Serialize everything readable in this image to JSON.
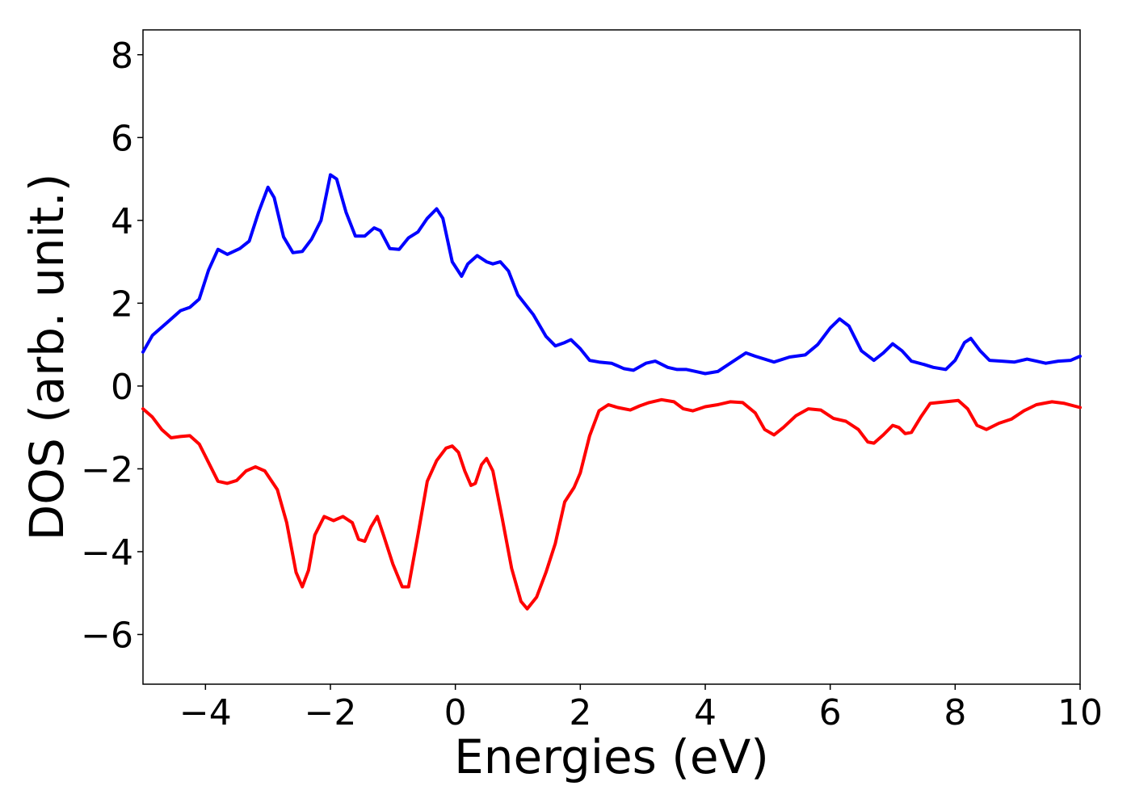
{
  "chart_data": {
    "type": "line",
    "title": "",
    "xlabel": "Energies (eV)",
    "ylabel": "DOS (arb. unit.)",
    "xlim": [
      -5,
      10
    ],
    "ylim": [
      -7.2,
      8.6
    ],
    "grid": false,
    "legend": "none",
    "xticks": [
      {
        "value": -4,
        "label": "−4"
      },
      {
        "value": -2,
        "label": "−2"
      },
      {
        "value": 0,
        "label": "0"
      },
      {
        "value": 2,
        "label": "2"
      },
      {
        "value": 4,
        "label": "4"
      },
      {
        "value": 6,
        "label": "6"
      },
      {
        "value": 8,
        "label": "8"
      },
      {
        "value": 10,
        "label": "10"
      }
    ],
    "yticks": [
      {
        "value": 8,
        "label": "8"
      },
      {
        "value": 6,
        "label": "6"
      },
      {
        "value": 4,
        "label": "4"
      },
      {
        "value": 2,
        "label": "2"
      },
      {
        "value": 0,
        "label": "0"
      },
      {
        "value": -2,
        "label": "−2"
      },
      {
        "value": -4,
        "label": "−4"
      },
      {
        "value": -6,
        "label": "−6"
      }
    ],
    "series": [
      {
        "color": "#0000ff",
        "points": [
          [
            -5.0,
            0.82
          ],
          [
            -4.85,
            1.22
          ],
          [
            -4.6,
            1.55
          ],
          [
            -4.4,
            1.82
          ],
          [
            -4.25,
            1.9
          ],
          [
            -4.1,
            2.1
          ],
          [
            -3.95,
            2.8
          ],
          [
            -3.8,
            3.3
          ],
          [
            -3.65,
            3.18
          ],
          [
            -3.45,
            3.32
          ],
          [
            -3.3,
            3.5
          ],
          [
            -3.15,
            4.2
          ],
          [
            -3.0,
            4.8
          ],
          [
            -2.9,
            4.55
          ],
          [
            -2.75,
            3.6
          ],
          [
            -2.6,
            3.22
          ],
          [
            -2.45,
            3.25
          ],
          [
            -2.3,
            3.55
          ],
          [
            -2.15,
            4.0
          ],
          [
            -2.0,
            5.1
          ],
          [
            -1.9,
            5.0
          ],
          [
            -1.75,
            4.2
          ],
          [
            -1.6,
            3.62
          ],
          [
            -1.45,
            3.62
          ],
          [
            -1.3,
            3.82
          ],
          [
            -1.2,
            3.75
          ],
          [
            -1.05,
            3.32
          ],
          [
            -0.9,
            3.3
          ],
          [
            -0.75,
            3.58
          ],
          [
            -0.6,
            3.72
          ],
          [
            -0.45,
            4.05
          ],
          [
            -0.3,
            4.28
          ],
          [
            -0.2,
            4.05
          ],
          [
            -0.05,
            3.0
          ],
          [
            0.1,
            2.65
          ],
          [
            0.2,
            2.95
          ],
          [
            0.35,
            3.15
          ],
          [
            0.5,
            3.0
          ],
          [
            0.6,
            2.95
          ],
          [
            0.72,
            3.0
          ],
          [
            0.85,
            2.78
          ],
          [
            1.0,
            2.2
          ],
          [
            1.25,
            1.72
          ],
          [
            1.45,
            1.2
          ],
          [
            1.6,
            0.97
          ],
          [
            1.75,
            1.05
          ],
          [
            1.85,
            1.12
          ],
          [
            2.0,
            0.9
          ],
          [
            2.15,
            0.62
          ],
          [
            2.3,
            0.58
          ],
          [
            2.5,
            0.55
          ],
          [
            2.7,
            0.42
          ],
          [
            2.85,
            0.38
          ],
          [
            3.05,
            0.55
          ],
          [
            3.2,
            0.6
          ],
          [
            3.4,
            0.45
          ],
          [
            3.55,
            0.4
          ],
          [
            3.7,
            0.4
          ],
          [
            3.85,
            0.35
          ],
          [
            4.0,
            0.3
          ],
          [
            4.2,
            0.35
          ],
          [
            4.4,
            0.55
          ],
          [
            4.65,
            0.8
          ],
          [
            4.8,
            0.72
          ],
          [
            5.1,
            0.58
          ],
          [
            5.35,
            0.7
          ],
          [
            5.6,
            0.75
          ],
          [
            5.8,
            1.0
          ],
          [
            6.0,
            1.4
          ],
          [
            6.15,
            1.62
          ],
          [
            6.3,
            1.45
          ],
          [
            6.5,
            0.85
          ],
          [
            6.7,
            0.62
          ],
          [
            6.85,
            0.8
          ],
          [
            7.0,
            1.02
          ],
          [
            7.15,
            0.85
          ],
          [
            7.3,
            0.6
          ],
          [
            7.5,
            0.52
          ],
          [
            7.65,
            0.45
          ],
          [
            7.85,
            0.4
          ],
          [
            8.0,
            0.62
          ],
          [
            8.15,
            1.05
          ],
          [
            8.25,
            1.15
          ],
          [
            8.4,
            0.85
          ],
          [
            8.55,
            0.62
          ],
          [
            8.75,
            0.6
          ],
          [
            8.95,
            0.58
          ],
          [
            9.15,
            0.65
          ],
          [
            9.3,
            0.6
          ],
          [
            9.45,
            0.55
          ],
          [
            9.65,
            0.6
          ],
          [
            9.85,
            0.62
          ],
          [
            10.0,
            0.72
          ]
        ]
      },
      {
        "color": "#ff0000",
        "points": [
          [
            -5.0,
            -0.55
          ],
          [
            -4.85,
            -0.75
          ],
          [
            -4.7,
            -1.05
          ],
          [
            -4.55,
            -1.25
          ],
          [
            -4.4,
            -1.22
          ],
          [
            -4.25,
            -1.2
          ],
          [
            -4.1,
            -1.4
          ],
          [
            -3.95,
            -1.85
          ],
          [
            -3.8,
            -2.3
          ],
          [
            -3.65,
            -2.35
          ],
          [
            -3.5,
            -2.28
          ],
          [
            -3.35,
            -2.05
          ],
          [
            -3.2,
            -1.95
          ],
          [
            -3.05,
            -2.05
          ],
          [
            -2.85,
            -2.5
          ],
          [
            -2.7,
            -3.3
          ],
          [
            -2.55,
            -4.5
          ],
          [
            -2.45,
            -4.85
          ],
          [
            -2.35,
            -4.45
          ],
          [
            -2.25,
            -3.6
          ],
          [
            -2.1,
            -3.15
          ],
          [
            -1.95,
            -3.25
          ],
          [
            -1.8,
            -3.15
          ],
          [
            -1.65,
            -3.3
          ],
          [
            -1.55,
            -3.7
          ],
          [
            -1.45,
            -3.75
          ],
          [
            -1.35,
            -3.4
          ],
          [
            -1.25,
            -3.15
          ],
          [
            -1.15,
            -3.6
          ],
          [
            -1.0,
            -4.3
          ],
          [
            -0.85,
            -4.85
          ],
          [
            -0.75,
            -4.85
          ],
          [
            -0.6,
            -3.6
          ],
          [
            -0.45,
            -2.3
          ],
          [
            -0.3,
            -1.8
          ],
          [
            -0.15,
            -1.5
          ],
          [
            -0.05,
            -1.45
          ],
          [
            0.05,
            -1.6
          ],
          [
            0.15,
            -2.05
          ],
          [
            0.25,
            -2.4
          ],
          [
            0.32,
            -2.35
          ],
          [
            0.42,
            -1.9
          ],
          [
            0.5,
            -1.75
          ],
          [
            0.6,
            -2.05
          ],
          [
            0.75,
            -3.2
          ],
          [
            0.9,
            -4.4
          ],
          [
            1.05,
            -5.2
          ],
          [
            1.15,
            -5.38
          ],
          [
            1.3,
            -5.1
          ],
          [
            1.45,
            -4.5
          ],
          [
            1.6,
            -3.8
          ],
          [
            1.75,
            -2.8
          ],
          [
            1.9,
            -2.45
          ],
          [
            2.0,
            -2.1
          ],
          [
            2.15,
            -1.2
          ],
          [
            2.3,
            -0.6
          ],
          [
            2.45,
            -0.45
          ],
          [
            2.6,
            -0.52
          ],
          [
            2.8,
            -0.58
          ],
          [
            2.95,
            -0.48
          ],
          [
            3.1,
            -0.4
          ],
          [
            3.3,
            -0.33
          ],
          [
            3.5,
            -0.38
          ],
          [
            3.65,
            -0.55
          ],
          [
            3.8,
            -0.6
          ],
          [
            4.0,
            -0.5
          ],
          [
            4.2,
            -0.45
          ],
          [
            4.4,
            -0.38
          ],
          [
            4.6,
            -0.4
          ],
          [
            4.8,
            -0.65
          ],
          [
            4.95,
            -1.05
          ],
          [
            5.1,
            -1.18
          ],
          [
            5.25,
            -1.0
          ],
          [
            5.45,
            -0.72
          ],
          [
            5.65,
            -0.55
          ],
          [
            5.85,
            -0.58
          ],
          [
            6.05,
            -0.78
          ],
          [
            6.25,
            -0.85
          ],
          [
            6.45,
            -1.05
          ],
          [
            6.6,
            -1.35
          ],
          [
            6.7,
            -1.38
          ],
          [
            6.85,
            -1.18
          ],
          [
            7.0,
            -0.95
          ],
          [
            7.1,
            -1.0
          ],
          [
            7.2,
            -1.15
          ],
          [
            7.3,
            -1.12
          ],
          [
            7.45,
            -0.75
          ],
          [
            7.6,
            -0.42
          ],
          [
            7.85,
            -0.38
          ],
          [
            8.05,
            -0.35
          ],
          [
            8.2,
            -0.55
          ],
          [
            8.35,
            -0.95
          ],
          [
            8.5,
            -1.05
          ],
          [
            8.7,
            -0.9
          ],
          [
            8.9,
            -0.8
          ],
          [
            9.1,
            -0.6
          ],
          [
            9.3,
            -0.45
          ],
          [
            9.55,
            -0.38
          ],
          [
            9.75,
            -0.42
          ],
          [
            10.0,
            -0.52
          ]
        ]
      }
    ]
  }
}
